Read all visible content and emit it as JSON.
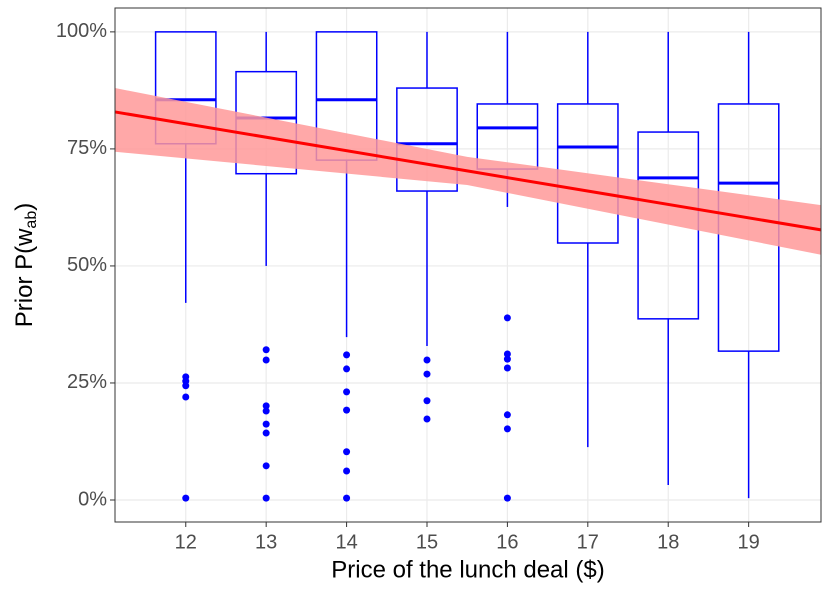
{
  "chart_data": {
    "type": "box",
    "xlabel": "Price of the lunch deal ($)",
    "ylabel": {
      "text": "Prior P(w",
      "sub": "ab",
      "close": ")"
    },
    "xlim": [
      11.12,
      19.9
    ],
    "ylim": [
      -4.7,
      105.1
    ],
    "xticks": [
      12,
      13,
      14,
      15,
      16,
      17,
      18,
      19
    ],
    "yticks": [
      {
        "value": 0,
        "label": "0%"
      },
      {
        "value": 25,
        "label": "25%"
      },
      {
        "value": 50,
        "label": "50%"
      },
      {
        "value": 75,
        "label": "75%"
      },
      {
        "value": 100,
        "label": "100%"
      }
    ],
    "grid": true,
    "color": "#0000ff",
    "boxes": [
      {
        "x": 12,
        "whisker_low": 42.1,
        "q1": 76.1,
        "median": 85.5,
        "q3": 100,
        "whisker_high": 100,
        "outliers": [
          26.3,
          25.4,
          24.4,
          22.0,
          0.4
        ]
      },
      {
        "x": 13,
        "whisker_low": 50,
        "q1": 69.7,
        "median": 81.6,
        "q3": 91.5,
        "whisker_high": 100,
        "outliers": [
          32.1,
          29.9,
          20.1,
          19.0,
          16.2,
          14.3,
          7.3,
          0.4
        ]
      },
      {
        "x": 14,
        "whisker_low": 34.8,
        "q1": 72.6,
        "median": 85.5,
        "q3": 100,
        "whisker_high": 100,
        "outliers": [
          31.0,
          28.0,
          23.1,
          19.2,
          10.3,
          6.2,
          0.4
        ]
      },
      {
        "x": 15,
        "whisker_low": 32.9,
        "q1": 66.0,
        "median": 76.1,
        "q3": 88.0,
        "whisker_high": 100,
        "outliers": [
          29.9,
          26.9,
          21.2,
          17.3
        ]
      },
      {
        "x": 16,
        "whisker_low": 62.6,
        "q1": 70.7,
        "median": 79.5,
        "q3": 84.6,
        "whisker_high": 100,
        "outliers": [
          38.9,
          31.2,
          30.1,
          28.2,
          18.2,
          15.2,
          0.4
        ]
      },
      {
        "x": 17,
        "whisker_low": 11.3,
        "q1": 54.9,
        "median": 75.4,
        "q3": 84.6,
        "whisker_high": 100,
        "outliers": []
      },
      {
        "x": 18,
        "whisker_low": 3.2,
        "q1": 38.7,
        "median": 68.8,
        "q3": 78.6,
        "whisker_high": 100,
        "outliers": []
      },
      {
        "x": 19,
        "whisker_low": 0.4,
        "q1": 31.8,
        "median": 67.7,
        "q3": 84.6,
        "whisker_high": 100,
        "outliers": []
      }
    ],
    "trend": {
      "color": "#ff0000",
      "band_color": "#ff9999",
      "x": [
        11.12,
        15.5,
        19.9
      ],
      "values": [
        82.9,
        70.3,
        57.7
      ],
      "lower": [
        74.4,
        67.3,
        52.4
      ],
      "upper": [
        88.0,
        73.3,
        63.0
      ]
    }
  }
}
